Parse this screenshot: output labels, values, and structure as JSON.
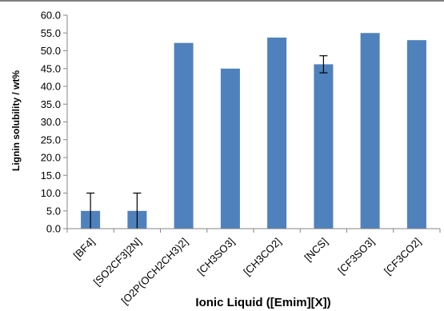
{
  "chart_data": {
    "type": "bar",
    "title": "",
    "xlabel": "Ionic Liquid ([Emim][X])",
    "ylabel": "Lignin solubility / wt%",
    "categories": [
      "[BF4]",
      "[SO2CF3]2N]",
      "[O2P(OCH2CH3)2]",
      "[CH3SO3]",
      "[CH3CO2]",
      "[NCS]",
      "[CF3SO3]",
      "[CF3CO2]"
    ],
    "values": [
      5.0,
      5.0,
      52.2,
      45.0,
      53.7,
      46.2,
      55.0,
      53.0
    ],
    "error": [
      5.0,
      5.0,
      0,
      0,
      0,
      2.4,
      0,
      0
    ],
    "ylim": [
      0,
      60
    ],
    "ytick_step": 5,
    "ytick_labels": [
      "0.0",
      "5.0",
      "10.0",
      "15.0",
      "20.0",
      "25.0",
      "30.0",
      "35.0",
      "40.0",
      "45.0",
      "50.0",
      "55.0",
      "60.0"
    ],
    "grid": false,
    "legend": "none",
    "bar_color": "#4f81bd",
    "error_color": "#000000",
    "axis_color": "#868686"
  }
}
